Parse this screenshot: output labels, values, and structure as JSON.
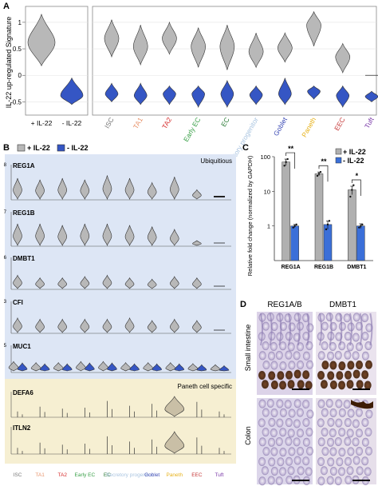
{
  "panels": {
    "A": {
      "letter": "A",
      "ylabel": "IL-22 up-regulated Signature",
      "yticks": [
        "1",
        "0.5",
        "0",
        "-0.5"
      ],
      "left_groups": [
        "+ IL-22",
        "- IL-22"
      ],
      "cell_types": [
        "ISC",
        "TA1",
        "TA2",
        "Early EC",
        "EC",
        "Secretory progenitor",
        "Goblet",
        "Paneth",
        "EEC",
        "Tuft"
      ],
      "cell_type_colors": [
        "#777777",
        "#e8956e",
        "#d62d2d",
        "#3aa048",
        "#2f7d3a",
        "#a9c4e0",
        "#3c4bb5",
        "#e7b21c",
        "#c63b3b",
        "#7b3aa8"
      ]
    },
    "B": {
      "letter": "B",
      "legend": {
        "plus": "+ IL-22",
        "minus": "- IL-22"
      },
      "colors": {
        "plus": "#b8b8b8",
        "minus": "#3556c4",
        "upper_bg": "#dde6f5",
        "lower_bg": "#f6efd2"
      },
      "section_labels": {
        "ubiquitous": "Ubiquitious",
        "paneth": "Paneth cell specific"
      },
      "genes": [
        {
          "name": "REG1A",
          "ymax": "8"
        },
        {
          "name": "REG1B",
          "ymax": "7"
        },
        {
          "name": "DMBT1",
          "ymax": "6"
        },
        {
          "name": "CFI",
          "ymax": "3"
        },
        {
          "name": "MUC1",
          "ymax": "5"
        },
        {
          "name": "DEFA6",
          "ymax": ""
        },
        {
          "name": "ITLN2",
          "ymax": ""
        }
      ],
      "cell_types": [
        "ISC",
        "TA1",
        "TA2",
        "Early EC",
        "EC",
        "Secretory progenitor",
        "Goblet",
        "Paneth",
        "EEC",
        "Tuft"
      ]
    },
    "C": {
      "letter": "C",
      "legend": {
        "plus": "+ IL-22",
        "minus": "- IL-22"
      },
      "ylabel": "Relative fold change (normalized by GAPDH)",
      "significance": [
        "**",
        "**",
        "*"
      ]
    },
    "D": {
      "letter": "D",
      "columns": [
        "REG1A/B",
        "DMBT1"
      ],
      "rows": [
        "Small intestine",
        "Colon"
      ]
    }
  },
  "chart_data": [
    {
      "panel": "A",
      "type": "violin",
      "title": "",
      "ylabel": "IL-22 up-regulated Signature",
      "ylim": [
        -0.75,
        1.3
      ],
      "left_panel": {
        "categories": [
          "+ IL-22",
          "- IL-22"
        ],
        "medians": [
          0.62,
          -0.38
        ],
        "ranges": [
          [
            0.18,
            1.15
          ],
          [
            -0.55,
            -0.05
          ]
        ]
      },
      "categories": [
        "ISC",
        "TA1",
        "TA2",
        "Early EC",
        "EC",
        "Secretory progenitor",
        "Goblet",
        "Paneth",
        "EEC",
        "Tuft"
      ],
      "series": [
        {
          "name": "+ IL-22",
          "medians": [
            0.7,
            0.55,
            0.7,
            0.55,
            0.55,
            0.45,
            0.52,
            0.95,
            0.35,
            0.0
          ],
          "ranges": [
            [
              0.35,
              1.05
            ],
            [
              0.2,
              0.95
            ],
            [
              0.4,
              1.0
            ],
            [
              0.15,
              0.9
            ],
            [
              0.1,
              0.95
            ],
            [
              0.15,
              0.8
            ],
            [
              0.25,
              0.8
            ],
            [
              0.55,
              1.2
            ],
            [
              0.05,
              0.6
            ],
            [
              0.0,
              0.0
            ]
          ]
        },
        {
          "name": "- IL-22",
          "medians": [
            -0.35,
            -0.38,
            -0.35,
            -0.35,
            -0.35,
            -0.37,
            -0.35,
            -0.3,
            -0.38,
            -0.4
          ],
          "ranges": [
            [
              -0.5,
              -0.15
            ],
            [
              -0.55,
              -0.15
            ],
            [
              -0.55,
              -0.2
            ],
            [
              -0.6,
              -0.2
            ],
            [
              -0.6,
              -0.1
            ],
            [
              -0.55,
              -0.2
            ],
            [
              -0.55,
              -0.05
            ],
            [
              -0.45,
              -0.2
            ],
            [
              -0.6,
              -0.2
            ],
            [
              -0.5,
              -0.3
            ]
          ]
        }
      ]
    },
    {
      "panel": "C",
      "type": "bar",
      "ylabel": "Relative fold change (normalized by GAPDH)",
      "yscale": "log",
      "ylim": [
        0.1,
        100
      ],
      "yticks": [
        1,
        10,
        100
      ],
      "categories": [
        "REG1A",
        "REG1B",
        "DMBT1"
      ],
      "series": [
        {
          "name": "+ IL-22",
          "values": [
            70,
            32,
            11
          ],
          "errors": [
            15,
            4,
            3
          ],
          "points": [
            [
              55,
              70,
              85
            ],
            [
              28,
              32,
              36
            ],
            [
              7,
              11,
              15
            ]
          ]
        },
        {
          "name": "- IL-22",
          "values": [
            1,
            1.1,
            1
          ],
          "errors": [
            0.1,
            0.3,
            0.15
          ],
          "points": [
            [
              0.9,
              1.0,
              1.1
            ],
            [
              0.8,
              1.1,
              1.4
            ],
            [
              0.9,
              1.0,
              1.1
            ]
          ]
        }
      ]
    }
  ]
}
